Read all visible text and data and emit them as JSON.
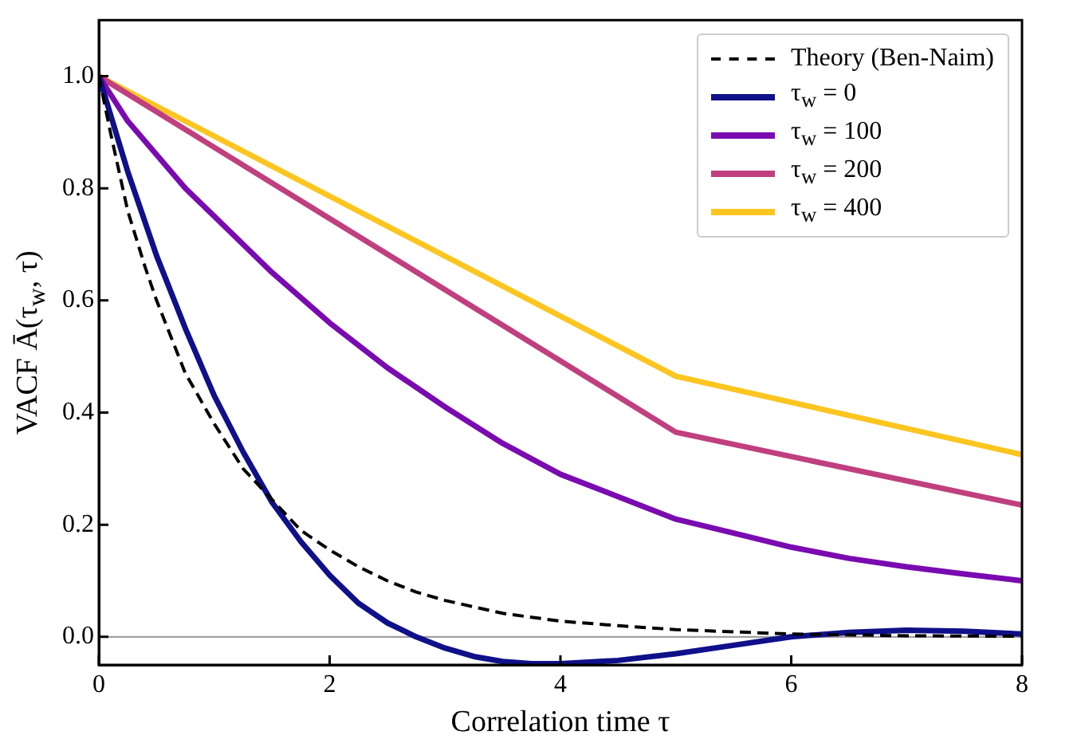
{
  "chart_data": {
    "type": "line",
    "xlabel": "Correlation time τ",
    "ylabel": "VACF Ā(τ$_{w}$, τ)",
    "xlim": [
      0,
      8
    ],
    "xticks": [
      0,
      2,
      4,
      6,
      8
    ],
    "ylim": [
      -0.05,
      1.1
    ],
    "yticks": [
      {
        "value": 0,
        "label": "0.0"
      },
      {
        "value": 0.2,
        "label": "0.2"
      },
      {
        "value": 0.4,
        "label": "0.4"
      },
      {
        "value": 0.6,
        "label": "0.6"
      },
      {
        "value": 0.8,
        "label": "0.8"
      },
      {
        "value": 1,
        "label": "1.0"
      }
    ],
    "grid": false,
    "legend": "top right",
    "marker": "none",
    "ref_lines": [
      {
        "axis": "y",
        "value": 0,
        "color": "#a0a0a0"
      }
    ],
    "series": [
      {
        "name": "Theory (Ben-Naim)",
        "color": "#000000",
        "line_style": "dashed",
        "x": [
          0,
          0.1,
          0.25,
          0.4,
          0.5,
          0.75,
          1,
          1.25,
          1.5,
          1.75,
          2,
          2.25,
          2.5,
          2.75,
          3,
          3.5,
          4,
          4.5,
          5,
          6,
          7,
          8
        ],
        "values": [
          1,
          0.9,
          0.76,
          0.66,
          0.6,
          0.47,
          0.38,
          0.3,
          0.245,
          0.19,
          0.155,
          0.125,
          0.1,
          0.08,
          0.065,
          0.042,
          0.028,
          0.02,
          0.013,
          0.005,
          0.002,
          0.001
        ]
      },
      {
        "name": "τ$_{w}$ = 0",
        "color": "#10108a",
        "x": [
          0,
          0.25,
          0.5,
          0.75,
          1,
          1.25,
          1.5,
          1.75,
          2,
          2.25,
          2.5,
          2.75,
          3,
          3.25,
          3.5,
          3.75,
          4,
          4.5,
          5,
          5.5,
          6,
          6.5,
          7,
          7.5,
          8
        ],
        "values": [
          1,
          0.83,
          0.68,
          0.55,
          0.43,
          0.33,
          0.24,
          0.17,
          0.11,
          0.06,
          0.025,
          0,
          -0.02,
          -0.035,
          -0.044,
          -0.048,
          -0.048,
          -0.042,
          -0.03,
          -0.015,
          0,
          0.008,
          0.012,
          0.01,
          0.005
        ]
      },
      {
        "name": "τ$_{w}$ = 100",
        "color": "#7a0bb0",
        "x": [
          0,
          0.25,
          0.5,
          0.75,
          1,
          1.5,
          2,
          2.5,
          3,
          3.5,
          4,
          4.5,
          5,
          5.5,
          6,
          6.5,
          7,
          7.5,
          8
        ],
        "values": [
          1,
          0.92,
          0.86,
          0.8,
          0.75,
          0.65,
          0.56,
          0.48,
          0.41,
          0.345,
          0.29,
          0.25,
          0.21,
          0.185,
          0.16,
          0.14,
          0.125,
          0.112,
          0.1
        ]
      },
      {
        "name": "τ$_{w}$ = 200",
        "color": "#c0407f",
        "x": [
          0,
          5,
          8
        ],
        "values": [
          1,
          0.365,
          0.235
        ]
      },
      {
        "name": "τ$_{w}$ = 400",
        "color": "#fcc520",
        "x": [
          0,
          5,
          8
        ],
        "values": [
          1,
          0.465,
          0.325
        ]
      }
    ]
  }
}
